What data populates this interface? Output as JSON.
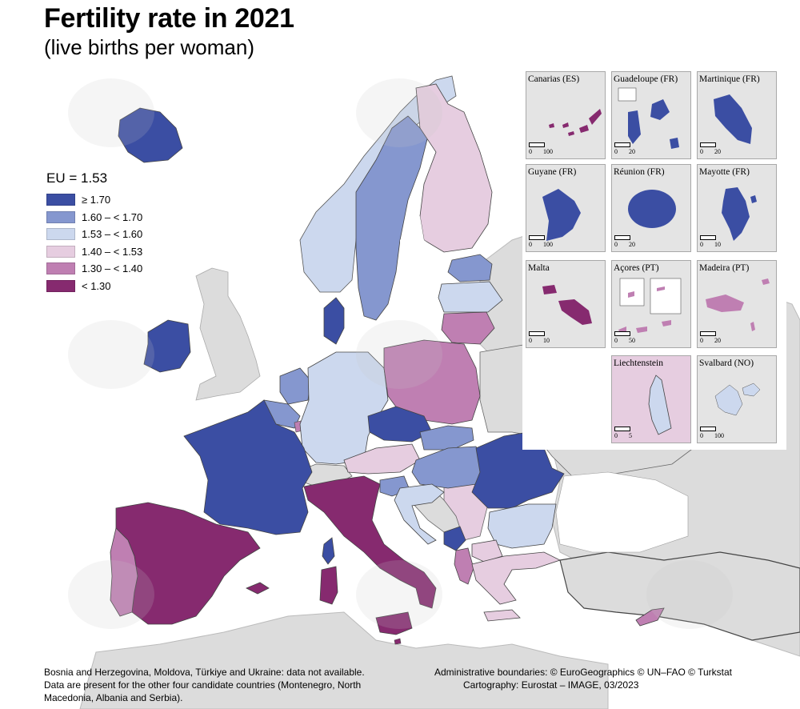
{
  "title": "Fertility rate in 2021",
  "subtitle": "(live births per woman)",
  "legend": {
    "title": "EU = 1.53",
    "items": [
      {
        "label": "≥ 1.70",
        "color": "#3b4ea3"
      },
      {
        "label": "1.60 – < 1.70",
        "color": "#8597cf"
      },
      {
        "label": "1.53 – < 1.60",
        "color": "#ccd8ee"
      },
      {
        "label": "1.40 – < 1.53",
        "color": "#e6cde0"
      },
      {
        "label": "1.30 – < 1.40",
        "color": "#bf7fb2"
      },
      {
        "label": "< 1.30",
        "color": "#862a6f"
      }
    ]
  },
  "insets": [
    {
      "label": "Canarias (ES)",
      "scale": [
        "0",
        "100"
      ]
    },
    {
      "label": "Guadeloupe (FR)",
      "scale": [
        "0",
        "20"
      ]
    },
    {
      "label": "Martinique (FR)",
      "scale": [
        "0",
        "20"
      ]
    },
    {
      "label": "Guyane (FR)",
      "scale": [
        "0",
        "100"
      ]
    },
    {
      "label": "Réunion (FR)",
      "scale": [
        "0",
        "20"
      ]
    },
    {
      "label": "Mayotte (FR)",
      "scale": [
        "0",
        "10"
      ]
    },
    {
      "label": "Malta",
      "scale": [
        "0",
        "10"
      ]
    },
    {
      "label": "Açores (PT)",
      "scale": [
        "0",
        "50"
      ]
    },
    {
      "label": "Madeira (PT)",
      "scale": [
        "0",
        "20"
      ]
    },
    {
      "label": "Liechtenstein",
      "scale": [
        "0",
        "5"
      ]
    },
    {
      "label": "Svalbard (NO)",
      "scale": [
        "0",
        "100"
      ]
    }
  ],
  "footer": {
    "note_line1": "Bosnia and Herzegovina, Moldova, Türkiye and Ukraine: data not available.",
    "note_line2": "Data are present for the other four candidate countries (Montenegro, North",
    "note_line3": "Macedonia, Albania and Serbia).",
    "credit_line1": "Administrative boundaries: © EuroGeographics © UN–FAO © Turkstat",
    "credit_line2": "Cartography: Eurostat – IMAGE, 03/2023"
  },
  "colors": {
    "sea": "#ffffff",
    "no_data": "#dcdcdc",
    "border": "#333333"
  }
}
